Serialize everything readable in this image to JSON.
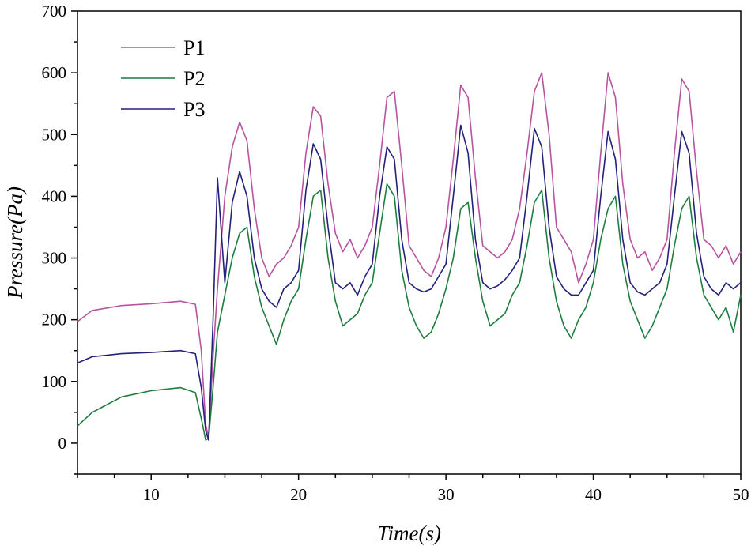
{
  "chart_data": {
    "type": "line",
    "title": "",
    "xlabel": "Time(s)",
    "ylabel": "Pressure(Pa)",
    "xlim": [
      5,
      50
    ],
    "ylim": [
      -50,
      700
    ],
    "x_ticks": [
      10,
      20,
      30,
      40,
      50
    ],
    "x_tick_labels": [
      "10",
      "20",
      "30",
      "40",
      "50"
    ],
    "y_ticks": [
      0,
      100,
      200,
      300,
      400,
      500,
      600,
      700
    ],
    "y_tick_labels": [
      "0",
      "100",
      "200",
      "300",
      "400",
      "500",
      "600",
      "700"
    ],
    "legend_position": "top-left",
    "grid": false,
    "series": [
      {
        "name": "P1",
        "color": "#b8539f",
        "x": [
          5,
          6,
          8,
          10,
          12,
          13,
          13.4,
          13.7,
          13.9,
          14.2,
          14.5,
          15,
          15.5,
          16,
          16.5,
          17,
          17.5,
          18,
          18.5,
          19,
          19.5,
          20,
          20.5,
          21,
          21.5,
          22,
          22.5,
          23,
          23.5,
          24,
          24.5,
          25,
          25.5,
          26,
          26.5,
          27,
          27.5,
          28,
          28.5,
          29,
          29.5,
          30,
          30.5,
          31,
          31.5,
          32,
          32.5,
          33,
          33.5,
          34,
          34.5,
          35,
          35.5,
          36,
          36.5,
          37,
          37.5,
          38,
          38.5,
          39,
          39.5,
          40,
          40.5,
          41,
          41.5,
          42,
          42.5,
          43,
          43.5,
          44,
          44.5,
          45,
          45.5,
          46,
          46.5,
          47,
          47.5,
          48,
          48.5,
          49,
          49.5,
          50
        ],
        "values": [
          197,
          215,
          223,
          226,
          230,
          225,
          150,
          30,
          10,
          140,
          250,
          400,
          480,
          520,
          490,
          380,
          300,
          270,
          290,
          300,
          320,
          350,
          470,
          545,
          530,
          420,
          340,
          310,
          330,
          300,
          320,
          350,
          450,
          560,
          570,
          450,
          320,
          300,
          280,
          270,
          300,
          350,
          460,
          580,
          560,
          430,
          320,
          310,
          300,
          310,
          330,
          380,
          470,
          570,
          600,
          500,
          350,
          330,
          310,
          260,
          290,
          330,
          470,
          600,
          560,
          420,
          330,
          300,
          310,
          280,
          300,
          330,
          470,
          590,
          570,
          440,
          330,
          320,
          300,
          320,
          290,
          310
        ]
      },
      {
        "name": "P2",
        "color": "#1e7d3e",
        "x": [
          5,
          6,
          8,
          10,
          12,
          13,
          13.4,
          13.7,
          13.9,
          14.2,
          14.5,
          15,
          15.5,
          16,
          16.5,
          17,
          17.5,
          18,
          18.5,
          19,
          19.5,
          20,
          20.5,
          21,
          21.5,
          22,
          22.5,
          23,
          23.5,
          24,
          24.5,
          25,
          25.5,
          26,
          26.5,
          27,
          27.5,
          28,
          28.5,
          29,
          29.5,
          30,
          30.5,
          31,
          31.5,
          32,
          32.5,
          33,
          33.5,
          34,
          34.5,
          35,
          35.5,
          36,
          36.5,
          37,
          37.5,
          38,
          38.5,
          39,
          39.5,
          40,
          40.5,
          41,
          41.5,
          42,
          42.5,
          43,
          43.5,
          44,
          44.5,
          45,
          45.5,
          46,
          46.5,
          47,
          47.5,
          48,
          48.5,
          49,
          49.5,
          50
        ],
        "values": [
          28,
          50,
          75,
          85,
          90,
          82,
          40,
          5,
          8,
          90,
          180,
          240,
          300,
          340,
          350,
          270,
          220,
          190,
          160,
          200,
          230,
          250,
          330,
          400,
          410,
          300,
          230,
          190,
          200,
          210,
          240,
          260,
          340,
          420,
          400,
          280,
          220,
          190,
          170,
          180,
          210,
          250,
          300,
          380,
          390,
          300,
          230,
          190,
          200,
          210,
          240,
          260,
          320,
          390,
          410,
          300,
          230,
          190,
          170,
          200,
          220,
          260,
          330,
          380,
          400,
          290,
          230,
          200,
          170,
          190,
          220,
          250,
          320,
          380,
          400,
          300,
          240,
          220,
          200,
          220,
          180,
          240
        ]
      },
      {
        "name": "P3",
        "color": "#23217a",
        "x": [
          5,
          6,
          8,
          10,
          12,
          13,
          13.4,
          13.7,
          13.9,
          14.2,
          14.5,
          15,
          15.5,
          16,
          16.5,
          17,
          17.5,
          18,
          18.5,
          19,
          19.5,
          20,
          20.5,
          21,
          21.5,
          22,
          22.5,
          23,
          23.5,
          24,
          24.5,
          25,
          25.5,
          26,
          26.5,
          27,
          27.5,
          28,
          28.5,
          29,
          29.5,
          30,
          30.5,
          31,
          31.5,
          32,
          32.5,
          33,
          33.5,
          34,
          34.5,
          35,
          35.5,
          36,
          36.5,
          37,
          37.5,
          38,
          38.5,
          39,
          39.5,
          40,
          40.5,
          41,
          41.5,
          42,
          42.5,
          43,
          43.5,
          44,
          44.5,
          45,
          45.5,
          46,
          46.5,
          47,
          47.5,
          48,
          48.5,
          49,
          49.5,
          50
        ],
        "values": [
          130,
          140,
          145,
          147,
          150,
          145,
          90,
          20,
          5,
          200,
          430,
          260,
          390,
          440,
          400,
          300,
          250,
          230,
          220,
          250,
          260,
          280,
          410,
          485,
          460,
          350,
          260,
          250,
          260,
          240,
          270,
          290,
          400,
          480,
          460,
          330,
          260,
          250,
          245,
          250,
          270,
          290,
          400,
          515,
          470,
          330,
          260,
          250,
          255,
          265,
          280,
          300,
          400,
          510,
          480,
          350,
          270,
          250,
          240,
          240,
          260,
          280,
          400,
          505,
          460,
          330,
          260,
          245,
          240,
          250,
          260,
          290,
          400,
          505,
          470,
          340,
          270,
          250,
          240,
          260,
          250,
          260
        ]
      }
    ]
  }
}
